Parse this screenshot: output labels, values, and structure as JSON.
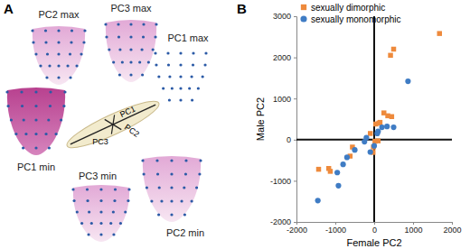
{
  "panel_labels": [
    "A",
    "B"
  ],
  "diagram": {
    "shape_labels": [
      "PC2 max",
      "PC3 max",
      "PC1 max",
      "PC1 min",
      "PC3 min",
      "PC2 min"
    ],
    "axis_labels": [
      "PC1",
      "PC2",
      "PC3"
    ]
  },
  "chart_data": {
    "type": "scatter",
    "x_label": "Female PC2",
    "y_label": "Male PC2",
    "xlim": [
      -2000,
      2000
    ],
    "ylim": [
      -2000,
      3000
    ],
    "xticks": [
      -2000,
      -1000,
      0,
      1000,
      2000
    ],
    "yticks": [
      -2000,
      -1000,
      0,
      1000,
      2000,
      3000
    ],
    "legend": "upper left",
    "series": [
      {
        "name": "sexually dimorphic",
        "color": "#ee8a3c",
        "marker": "square",
        "x": [
          1680,
          500,
          420,
          250,
          350,
          450,
          150,
          40,
          120,
          -100,
          20,
          -30,
          -560,
          -620,
          -1130,
          -1170,
          -1430,
          100,
          -20
        ],
        "values": [
          2580,
          2200,
          2050,
          650,
          580,
          560,
          420,
          380,
          400,
          150,
          -40,
          -310,
          -180,
          -400,
          -770,
          -700,
          -720,
          -30,
          -180
        ]
      },
      {
        "name": "sexually monomorphic",
        "color": "#3f7cc4",
        "marker": "circle",
        "x": [
          -1450,
          -920,
          -950,
          -800,
          -700,
          -500,
          -250,
          -200,
          -100,
          0,
          80,
          200,
          330,
          100,
          870,
          500
        ],
        "values": [
          -1480,
          -1120,
          -800,
          -600,
          -430,
          -250,
          -50,
          50,
          -300,
          -150,
          150,
          300,
          320,
          200,
          1420,
          300
        ]
      }
    ]
  }
}
